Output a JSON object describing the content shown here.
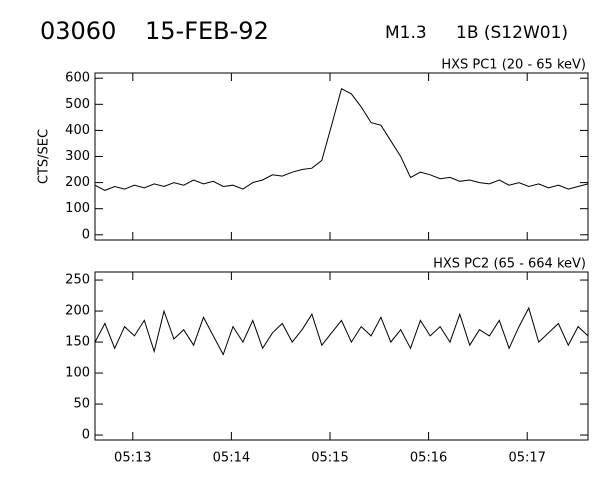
{
  "header": {
    "event": "03060",
    "date": "15-FEB-92",
    "class": "M1.3",
    "location": "1B (S12W01)"
  },
  "chart_data": [
    {
      "type": "line",
      "title": "HXS PC1 (20 - 65 keV)",
      "y_label": "CTS/SEC",
      "color": "#000000",
      "x": [
        "05:12:37",
        "05:12:43",
        "05:12:49",
        "05:12:55",
        "05:13:01",
        "05:13:07",
        "05:13:13",
        "05:13:19",
        "05:13:25",
        "05:13:31",
        "05:13:37",
        "05:13:43",
        "05:13:49",
        "05:13:55",
        "05:14:01",
        "05:14:07",
        "05:14:13",
        "05:14:19",
        "05:14:25",
        "05:14:31",
        "05:14:37",
        "05:14:43",
        "05:14:49",
        "05:14:55",
        "05:15:01",
        "05:15:07",
        "05:15:13",
        "05:15:19",
        "05:15:25",
        "05:15:31",
        "05:15:37",
        "05:15:43",
        "05:15:49",
        "05:15:55",
        "05:16:01",
        "05:16:07",
        "05:16:13",
        "05:16:19",
        "05:16:25",
        "05:16:31",
        "05:16:37",
        "05:16:43",
        "05:16:49",
        "05:16:55",
        "05:17:01",
        "05:17:07",
        "05:17:13",
        "05:17:19",
        "05:17:25",
        "05:17:31",
        "05:17:37"
      ],
      "values": [
        190,
        170,
        185,
        175,
        190,
        180,
        195,
        185,
        200,
        190,
        210,
        195,
        205,
        185,
        190,
        175,
        200,
        210,
        230,
        225,
        240,
        250,
        255,
        285,
        420,
        560,
        540,
        490,
        430,
        420,
        360,
        300,
        220,
        240,
        230,
        215,
        220,
        205,
        210,
        200,
        195,
        210,
        190,
        200,
        185,
        195,
        180,
        190,
        175,
        185,
        195
      ],
      "xlim": [
        "05:12:37",
        "05:17:37"
      ],
      "ylim": [
        -20,
        620
      ],
      "yticks": [
        0,
        100,
        200,
        300,
        400,
        500,
        600
      ]
    },
    {
      "type": "line",
      "title": "HXS PC2 (65 - 664 keV)",
      "color": "#000000",
      "x": [
        "05:12:37",
        "05:12:43",
        "05:12:49",
        "05:12:55",
        "05:13:01",
        "05:13:07",
        "05:13:13",
        "05:13:19",
        "05:13:25",
        "05:13:31",
        "05:13:37",
        "05:13:43",
        "05:13:49",
        "05:13:55",
        "05:14:01",
        "05:14:07",
        "05:14:13",
        "05:14:19",
        "05:14:25",
        "05:14:31",
        "05:14:37",
        "05:14:43",
        "05:14:49",
        "05:14:55",
        "05:15:01",
        "05:15:07",
        "05:15:13",
        "05:15:19",
        "05:15:25",
        "05:15:31",
        "05:15:37",
        "05:15:43",
        "05:15:49",
        "05:15:55",
        "05:16:01",
        "05:16:07",
        "05:16:13",
        "05:16:19",
        "05:16:25",
        "05:16:31",
        "05:16:37",
        "05:16:43",
        "05:16:49",
        "05:16:55",
        "05:17:01",
        "05:17:07",
        "05:17:13",
        "05:17:19",
        "05:17:25",
        "05:17:31",
        "05:17:37"
      ],
      "values": [
        150,
        180,
        140,
        175,
        160,
        185,
        135,
        200,
        155,
        170,
        145,
        190,
        160,
        130,
        175,
        150,
        185,
        140,
        165,
        180,
        150,
        170,
        195,
        145,
        165,
        185,
        150,
        175,
        160,
        190,
        150,
        170,
        140,
        185,
        160,
        175,
        150,
        195,
        145,
        170,
        160,
        185,
        140,
        175,
        205,
        150,
        165,
        180,
        145,
        175,
        160
      ],
      "xlim": [
        "05:12:37",
        "05:17:37"
      ],
      "ylim": [
        -8,
        263
      ],
      "yticks": [
        0,
        50,
        100,
        150,
        200,
        250
      ],
      "xticks": [
        "05:13",
        "05:14",
        "05:15",
        "05:16",
        "05:17"
      ]
    }
  ]
}
